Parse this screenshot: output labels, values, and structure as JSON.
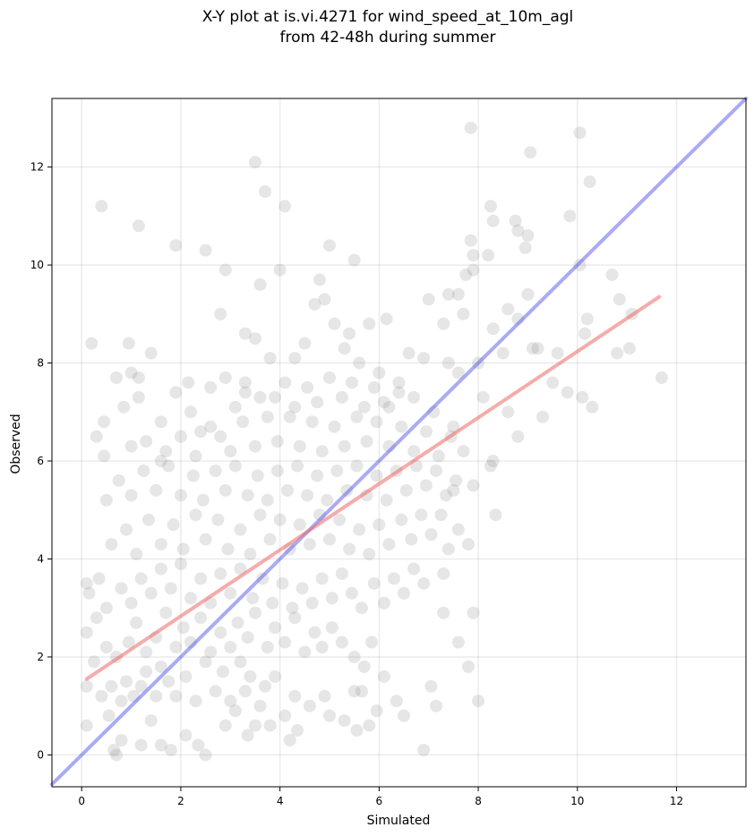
{
  "chart_data": {
    "type": "scatter",
    "title_lines": [
      "X-Y plot at is.vi.4271 for wind_speed_at_10m_agl",
      "from 42-48h during summer"
    ],
    "xlabel": "Simulated",
    "ylabel": "Observed",
    "xlim": [
      -0.6,
      13.4
    ],
    "ylim": [
      -0.65,
      13.4
    ],
    "x_ticks": [
      0,
      2,
      4,
      6,
      8,
      10,
      12
    ],
    "y_ticks": [
      0,
      2,
      4,
      6,
      8,
      10,
      12
    ],
    "grid": true,
    "point_color": "#808080",
    "point_alpha": 0.2,
    "identity_line": {
      "color": "#5555ee",
      "from": [
        -0.6,
        -0.6
      ],
      "to": [
        13.4,
        13.4
      ]
    },
    "regression_line": {
      "color": "#ee6666",
      "from": [
        0.1,
        1.55
      ],
      "to": [
        11.65,
        9.35
      ]
    },
    "points": [
      [
        0.4,
        11.2
      ],
      [
        1.15,
        10.8
      ],
      [
        1.9,
        10.4
      ],
      [
        2.5,
        10.3
      ],
      [
        2.9,
        9.9
      ],
      [
        3.5,
        12.1
      ],
      [
        3.7,
        11.5
      ],
      [
        4.1,
        11.2
      ],
      [
        4.0,
        9.9
      ],
      [
        3.6,
        9.6
      ],
      [
        2.8,
        9.0
      ],
      [
        0.2,
        8.4
      ],
      [
        0.95,
        8.4
      ],
      [
        1.4,
        8.2
      ],
      [
        1.0,
        7.8
      ],
      [
        0.7,
        7.7
      ],
      [
        1.15,
        7.7
      ],
      [
        0.85,
        7.1
      ],
      [
        1.15,
        7.3
      ],
      [
        1.9,
        7.4
      ],
      [
        2.15,
        7.6
      ],
      [
        1.6,
        6.8
      ],
      [
        0.45,
        6.8
      ],
      [
        0.3,
        6.5
      ],
      [
        0.45,
        6.1
      ],
      [
        1.0,
        6.3
      ],
      [
        1.7,
        6.2
      ],
      [
        2.4,
        6.6
      ],
      [
        2.8,
        6.5
      ],
      [
        3.1,
        7.1
      ],
      [
        3.3,
        7.6
      ],
      [
        3.5,
        8.5
      ],
      [
        3.3,
        8.6
      ],
      [
        3.8,
        8.1
      ],
      [
        5.0,
        10.4
      ],
      [
        5.5,
        10.1
      ],
      [
        4.8,
        9.7
      ],
      [
        4.7,
        9.2
      ],
      [
        4.9,
        9.3
      ],
      [
        5.1,
        8.8
      ],
      [
        5.4,
        8.6
      ],
      [
        5.8,
        8.8
      ],
      [
        6.15,
        8.9
      ],
      [
        5.3,
        8.3
      ],
      [
        5.6,
        8.0
      ],
      [
        6.0,
        7.8
      ],
      [
        4.3,
        8.1
      ],
      [
        4.5,
        8.4
      ],
      [
        7.85,
        12.8
      ],
      [
        8.25,
        11.2
      ],
      [
        8.3,
        10.9
      ],
      [
        8.2,
        10.2
      ],
      [
        7.85,
        10.5
      ],
      [
        7.9,
        10.2
      ],
      [
        8.75,
        10.9
      ],
      [
        8.8,
        10.7
      ],
      [
        9.0,
        10.6
      ],
      [
        8.95,
        10.35
      ],
      [
        9.05,
        12.3
      ],
      [
        10.05,
        12.7
      ],
      [
        10.25,
        11.7
      ],
      [
        9.85,
        11.0
      ],
      [
        10.05,
        10.0
      ],
      [
        10.7,
        9.8
      ],
      [
        10.85,
        9.3
      ],
      [
        11.1,
        9.0
      ],
      [
        10.8,
        8.2
      ],
      [
        11.05,
        8.3
      ],
      [
        11.7,
        7.7
      ],
      [
        10.3,
        7.1
      ],
      [
        10.15,
        8.6
      ],
      [
        10.2,
        8.9
      ],
      [
        10.1,
        7.3
      ],
      [
        9.8,
        7.4
      ],
      [
        9.5,
        7.6
      ],
      [
        9.3,
        6.9
      ],
      [
        9.6,
        8.2
      ],
      [
        9.1,
        8.3
      ],
      [
        8.6,
        7.0
      ],
      [
        8.1,
        7.3
      ],
      [
        8.3,
        6.0
      ],
      [
        8.8,
        6.5
      ],
      [
        8.25,
        5.9
      ],
      [
        8.35,
        4.9
      ],
      [
        7.9,
        5.5
      ],
      [
        7.5,
        5.4
      ],
      [
        7.6,
        4.6
      ],
      [
        7.4,
        4.2
      ],
      [
        7.8,
        4.3
      ],
      [
        7.3,
        3.7
      ],
      [
        7.9,
        2.9
      ],
      [
        7.8,
        1.8
      ],
      [
        8.0,
        1.1
      ],
      [
        7.15,
        1.0
      ],
      [
        7.05,
        1.4
      ],
      [
        7.3,
        2.9
      ],
      [
        7.6,
        2.3
      ],
      [
        6.9,
        0.1
      ],
      [
        6.5,
        0.8
      ],
      [
        6.35,
        1.1
      ],
      [
        6.1,
        1.6
      ],
      [
        7.0,
        9.3
      ],
      [
        7.4,
        9.4
      ],
      [
        7.6,
        9.4
      ],
      [
        7.7,
        9.0
      ],
      [
        7.3,
        8.8
      ],
      [
        7.9,
        9.9
      ],
      [
        7.75,
        9.8
      ],
      [
        8.3,
        8.7
      ],
      [
        8.6,
        9.1
      ],
      [
        8.8,
        8.9
      ],
      [
        9.2,
        8.3
      ],
      [
        9.0,
        9.4
      ],
      [
        8.5,
        8.2
      ],
      [
        8.0,
        8.0
      ],
      [
        7.6,
        7.8
      ],
      [
        7.4,
        8.0
      ],
      [
        6.9,
        8.1
      ],
      [
        6.6,
        8.2
      ],
      [
        6.4,
        7.6
      ],
      [
        6.7,
        7.3
      ],
      [
        6.2,
        7.1
      ],
      [
        7.1,
        7.0
      ],
      [
        7.5,
        6.7
      ],
      [
        0.1,
        0.6
      ],
      [
        0.1,
        1.4
      ],
      [
        0.25,
        1.9
      ],
      [
        0.1,
        2.5
      ],
      [
        0.1,
        3.5
      ],
      [
        0.15,
        3.3
      ],
      [
        0.35,
        3.6
      ],
      [
        0.3,
        2.8
      ],
      [
        0.5,
        2.2
      ],
      [
        0.4,
        1.2
      ],
      [
        0.55,
        0.8
      ],
      [
        0.65,
        0.1
      ],
      [
        0.8,
        0.3
      ],
      [
        0.7,
        0.0
      ],
      [
        1.2,
        0.2
      ],
      [
        1.6,
        0.2
      ],
      [
        1.4,
        0.7
      ],
      [
        1.8,
        0.1
      ],
      [
        2.1,
        0.4
      ],
      [
        2.5,
        0.0
      ],
      [
        2.35,
        0.2
      ],
      [
        2.9,
        0.6
      ],
      [
        3.1,
        0.9
      ],
      [
        3.35,
        0.4
      ],
      [
        3.5,
        0.6
      ],
      [
        3.8,
        0.6
      ],
      [
        4.2,
        0.3
      ],
      [
        4.35,
        0.5
      ],
      [
        4.1,
        0.8
      ],
      [
        4.6,
        1.0
      ],
      [
        4.9,
        1.2
      ],
      [
        5.0,
        0.8
      ],
      [
        5.3,
        0.7
      ],
      [
        5.55,
        0.5
      ],
      [
        5.8,
        0.6
      ],
      [
        5.95,
        0.9
      ],
      [
        5.5,
        1.3
      ],
      [
        5.65,
        1.3
      ],
      [
        4.3,
        1.2
      ],
      [
        3.9,
        1.6
      ],
      [
        3.4,
        1.6
      ],
      [
        0.6,
        1.4
      ],
      [
        0.8,
        1.1
      ],
      [
        0.9,
        1.5
      ],
      [
        1.05,
        1.2
      ],
      [
        1.2,
        1.4
      ],
      [
        1.3,
        1.7
      ],
      [
        1.5,
        1.2
      ],
      [
        1.6,
        1.8
      ],
      [
        1.75,
        1.5
      ],
      [
        1.9,
        1.2
      ],
      [
        2.1,
        1.6
      ],
      [
        2.3,
        1.1
      ],
      [
        2.5,
        1.9
      ],
      [
        2.7,
        1.3
      ],
      [
        2.85,
        1.7
      ],
      [
        3.0,
        1.1
      ],
      [
        3.2,
        1.9
      ],
      [
        3.3,
        1.3
      ],
      [
        3.6,
        1.0
      ],
      [
        3.7,
        1.4
      ],
      [
        0.7,
        2.0
      ],
      [
        0.95,
        2.3
      ],
      [
        1.1,
        2.7
      ],
      [
        1.3,
        2.1
      ],
      [
        1.5,
        2.4
      ],
      [
        1.7,
        2.9
      ],
      [
        1.9,
        2.2
      ],
      [
        2.05,
        2.6
      ],
      [
        2.2,
        2.3
      ],
      [
        2.4,
        2.8
      ],
      [
        2.6,
        2.1
      ],
      [
        2.8,
        2.5
      ],
      [
        3.0,
        2.2
      ],
      [
        3.15,
        2.7
      ],
      [
        3.35,
        2.4
      ],
      [
        3.5,
        2.9
      ],
      [
        3.75,
        2.2
      ],
      [
        3.9,
        2.6
      ],
      [
        4.1,
        2.3
      ],
      [
        4.3,
        2.8
      ],
      [
        4.5,
        2.1
      ],
      [
        4.7,
        2.5
      ],
      [
        4.85,
        2.2
      ],
      [
        5.05,
        2.6
      ],
      [
        5.25,
        2.3
      ],
      [
        5.5,
        2.0
      ],
      [
        5.7,
        1.8
      ],
      [
        5.85,
        2.3
      ],
      [
        0.5,
        3.0
      ],
      [
        0.8,
        3.4
      ],
      [
        1.0,
        3.1
      ],
      [
        1.2,
        3.6
      ],
      [
        1.4,
        3.3
      ],
      [
        1.6,
        3.8
      ],
      [
        1.8,
        3.4
      ],
      [
        2.0,
        3.9
      ],
      [
        2.2,
        3.2
      ],
      [
        2.4,
        3.6
      ],
      [
        2.6,
        3.1
      ],
      [
        2.8,
        3.7
      ],
      [
        3.0,
        3.3
      ],
      [
        3.2,
        3.8
      ],
      [
        3.45,
        3.2
      ],
      [
        3.65,
        3.6
      ],
      [
        3.85,
        3.1
      ],
      [
        4.05,
        3.5
      ],
      [
        4.25,
        3.0
      ],
      [
        4.45,
        3.4
      ],
      [
        4.65,
        3.1
      ],
      [
        4.85,
        3.6
      ],
      [
        5.05,
        3.2
      ],
      [
        5.25,
        3.7
      ],
      [
        5.45,
        3.3
      ],
      [
        5.65,
        3.0
      ],
      [
        5.9,
        3.5
      ],
      [
        6.1,
        3.1
      ],
      [
        6.3,
        3.6
      ],
      [
        6.5,
        3.3
      ],
      [
        6.7,
        3.8
      ],
      [
        6.9,
        3.5
      ],
      [
        0.6,
        4.3
      ],
      [
        0.9,
        4.6
      ],
      [
        1.1,
        4.1
      ],
      [
        1.35,
        4.8
      ],
      [
        1.6,
        4.3
      ],
      [
        1.85,
        4.7
      ],
      [
        2.05,
        4.2
      ],
      [
        2.3,
        4.9
      ],
      [
        2.5,
        4.4
      ],
      [
        2.75,
        4.8
      ],
      [
        2.95,
        4.2
      ],
      [
        3.2,
        4.6
      ],
      [
        3.4,
        4.1
      ],
      [
        3.6,
        4.9
      ],
      [
        3.8,
        4.4
      ],
      [
        4.0,
        4.8
      ],
      [
        4.2,
        4.2
      ],
      [
        4.4,
        4.7
      ],
      [
        4.6,
        4.3
      ],
      [
        4.8,
        4.9
      ],
      [
        5.0,
        4.4
      ],
      [
        5.2,
        4.8
      ],
      [
        5.4,
        4.2
      ],
      [
        5.6,
        4.6
      ],
      [
        5.8,
        4.1
      ],
      [
        6.0,
        4.7
      ],
      [
        6.2,
        4.3
      ],
      [
        6.45,
        4.8
      ],
      [
        6.65,
        4.4
      ],
      [
        6.85,
        4.9
      ],
      [
        7.05,
        4.5
      ],
      [
        7.25,
        4.9
      ],
      [
        0.5,
        5.2
      ],
      [
        0.75,
        5.6
      ],
      [
        1.0,
        5.3
      ],
      [
        1.25,
        5.8
      ],
      [
        1.5,
        5.4
      ],
      [
        1.75,
        5.9
      ],
      [
        2.0,
        5.3
      ],
      [
        2.25,
        5.7
      ],
      [
        2.45,
        5.2
      ],
      [
        2.7,
        5.8
      ],
      [
        2.9,
        5.4
      ],
      [
        3.1,
        5.9
      ],
      [
        3.35,
        5.3
      ],
      [
        3.55,
        5.7
      ],
      [
        3.75,
        5.2
      ],
      [
        3.95,
        5.8
      ],
      [
        4.15,
        5.4
      ],
      [
        4.35,
        5.9
      ],
      [
        4.55,
        5.3
      ],
      [
        4.75,
        5.7
      ],
      [
        4.95,
        5.2
      ],
      [
        5.15,
        5.8
      ],
      [
        5.35,
        5.4
      ],
      [
        5.55,
        5.9
      ],
      [
        5.75,
        5.3
      ],
      [
        5.95,
        5.7
      ],
      [
        6.15,
        5.2
      ],
      [
        6.35,
        5.8
      ],
      [
        6.55,
        5.4
      ],
      [
        6.75,
        5.9
      ],
      [
        6.95,
        5.5
      ],
      [
        7.15,
        5.8
      ],
      [
        7.35,
        5.3
      ],
      [
        7.55,
        5.6
      ],
      [
        1.3,
        6.4
      ],
      [
        1.6,
        6.0
      ],
      [
        2.0,
        6.5
      ],
      [
        2.3,
        6.1
      ],
      [
        2.6,
        6.7
      ],
      [
        3.0,
        6.2
      ],
      [
        3.25,
        6.8
      ],
      [
        3.5,
        6.3
      ],
      [
        3.75,
        6.9
      ],
      [
        3.95,
        6.4
      ],
      [
        4.2,
        6.9
      ],
      [
        4.4,
        6.3
      ],
      [
        4.65,
        6.8
      ],
      [
        4.85,
        6.2
      ],
      [
        5.1,
        6.7
      ],
      [
        5.3,
        6.3
      ],
      [
        5.55,
        6.9
      ],
      [
        5.75,
        6.4
      ],
      [
        5.95,
        6.8
      ],
      [
        6.2,
        6.3
      ],
      [
        6.45,
        6.7
      ],
      [
        6.7,
        6.2
      ],
      [
        6.95,
        6.6
      ],
      [
        7.2,
        6.1
      ],
      [
        7.45,
        6.5
      ],
      [
        7.7,
        6.2
      ],
      [
        3.9,
        7.3
      ],
      [
        4.1,
        7.6
      ],
      [
        4.3,
        7.1
      ],
      [
        4.55,
        7.5
      ],
      [
        4.75,
        7.2
      ],
      [
        5.0,
        7.7
      ],
      [
        5.25,
        7.3
      ],
      [
        5.45,
        7.6
      ],
      [
        5.7,
        7.1
      ],
      [
        5.9,
        7.5
      ],
      [
        6.1,
        7.2
      ],
      [
        6.4,
        7.4
      ],
      [
        3.6,
        7.3
      ],
      [
        3.3,
        7.4
      ],
      [
        2.9,
        7.7
      ],
      [
        2.6,
        7.5
      ],
      [
        2.2,
        7.0
      ]
    ]
  }
}
